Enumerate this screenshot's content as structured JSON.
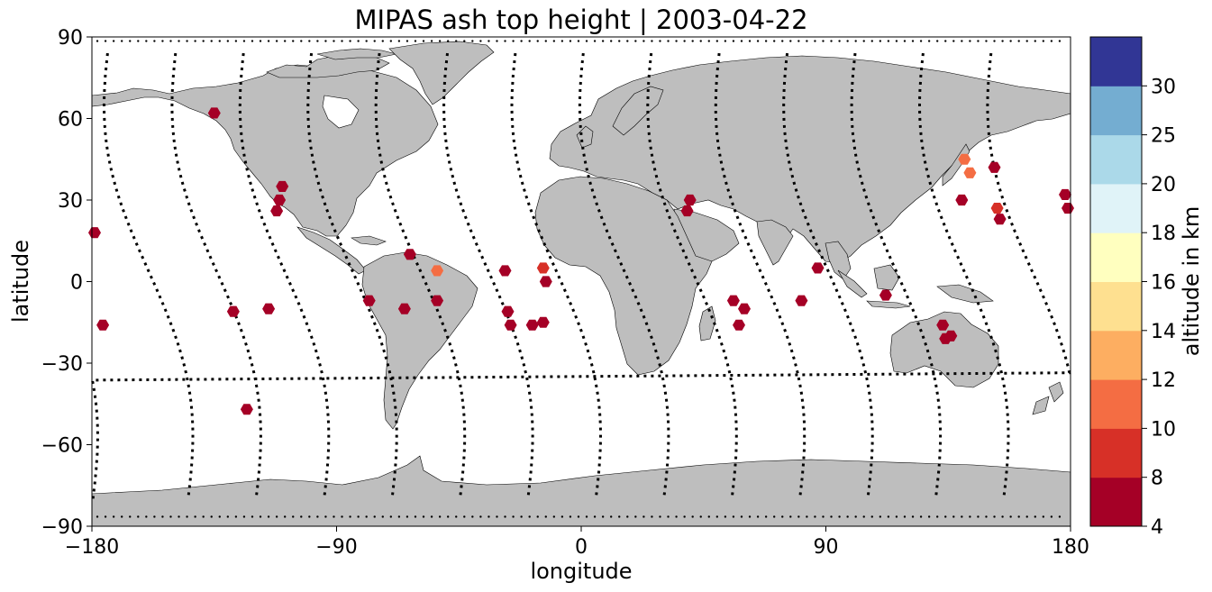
{
  "title": "MIPAS ash top height | 2003-04-22",
  "x_axis": {
    "label": "longitude",
    "range": [
      -180,
      180
    ],
    "ticks": [
      -180,
      -90,
      0,
      90,
      180
    ],
    "tick_labels": [
      "−180",
      "−90",
      "0",
      "90",
      "180"
    ]
  },
  "y_axis": {
    "label": "latitude",
    "range": [
      -90,
      90
    ],
    "ticks": [
      -90,
      -60,
      -30,
      0,
      30,
      60,
      90
    ],
    "tick_labels": [
      "−90",
      "−60",
      "−30",
      "0",
      "30",
      "60",
      "90"
    ]
  },
  "colorbar": {
    "label": "altitude in km",
    "bounds": [
      4,
      8,
      10,
      12,
      14,
      16,
      18,
      20,
      25,
      30
    ],
    "tick_labels": [
      "4",
      "8",
      "10",
      "12",
      "14",
      "16",
      "18",
      "20",
      "25",
      "30"
    ],
    "colors": [
      "#a50026",
      "#d73027",
      "#f46d43",
      "#fdae61",
      "#fee090",
      "#ffffbf",
      "#e0f3f8",
      "#abd9e9",
      "#74add1",
      "#313695"
    ]
  },
  "colors": {
    "land": "#bebebe",
    "coast": "#000000",
    "track": "#000000",
    "background": "#ffffff"
  },
  "chart_data": {
    "type": "scatter",
    "title": "MIPAS ash top height | 2003-04-22",
    "xlabel": "longitude",
    "ylabel": "latitude",
    "xlim": [
      -180,
      180
    ],
    "ylim": [
      -90,
      90
    ],
    "grid": false,
    "series": [
      {
        "name": "ash top height (km)",
        "points": [
          {
            "lon": -179,
            "lat": 18,
            "alt": 6
          },
          {
            "lon": -176,
            "lat": -16,
            "alt": 6
          },
          {
            "lon": -135,
            "lat": 62,
            "alt": 6
          },
          {
            "lon": -128,
            "lat": -11,
            "alt": 6
          },
          {
            "lon": -123,
            "lat": -47,
            "alt": 6
          },
          {
            "lon": -115,
            "lat": -10,
            "alt": 6
          },
          {
            "lon": -112,
            "lat": 26,
            "alt": 6
          },
          {
            "lon": -111,
            "lat": 30,
            "alt": 6
          },
          {
            "lon": -110,
            "lat": 35,
            "alt": 6
          },
          {
            "lon": -78,
            "lat": -7,
            "alt": 6
          },
          {
            "lon": -65,
            "lat": -10,
            "alt": 6
          },
          {
            "lon": -63,
            "lat": 10,
            "alt": 6
          },
          {
            "lon": -53,
            "lat": 4,
            "alt": 10
          },
          {
            "lon": -53,
            "lat": -7,
            "alt": 6
          },
          {
            "lon": -28,
            "lat": 4,
            "alt": 6
          },
          {
            "lon": -27,
            "lat": -11,
            "alt": 6
          },
          {
            "lon": -26,
            "lat": -16,
            "alt": 6
          },
          {
            "lon": -18,
            "lat": -16,
            "alt": 6
          },
          {
            "lon": -14,
            "lat": -15,
            "alt": 6
          },
          {
            "lon": -14,
            "lat": 5,
            "alt": 9
          },
          {
            "lon": -13,
            "lat": 0,
            "alt": 6
          },
          {
            "lon": 39,
            "lat": 26,
            "alt": 6
          },
          {
            "lon": 40,
            "lat": 30,
            "alt": 6
          },
          {
            "lon": 56,
            "lat": -7,
            "alt": 6
          },
          {
            "lon": 58,
            "lat": -16,
            "alt": 6
          },
          {
            "lon": 60,
            "lat": -10,
            "alt": 6
          },
          {
            "lon": 81,
            "lat": -7,
            "alt": 6
          },
          {
            "lon": 87,
            "lat": 5,
            "alt": 6
          },
          {
            "lon": 112,
            "lat": -5,
            "alt": 6
          },
          {
            "lon": 133,
            "lat": -16,
            "alt": 6
          },
          {
            "lon": 134,
            "lat": -21,
            "alt": 6
          },
          {
            "lon": 136,
            "lat": -20,
            "alt": 6
          },
          {
            "lon": 140,
            "lat": 30,
            "alt": 6
          },
          {
            "lon": 141,
            "lat": 45,
            "alt": 11
          },
          {
            "lon": 143,
            "lat": 40,
            "alt": 11
          },
          {
            "lon": 152,
            "lat": 42,
            "alt": 6
          },
          {
            "lon": 153,
            "lat": 27,
            "alt": 9
          },
          {
            "lon": 154,
            "lat": 23,
            "alt": 6
          },
          {
            "lon": 178,
            "lat": 32,
            "alt": 6
          },
          {
            "lon": 179,
            "lat": 27,
            "alt": 6
          }
        ]
      }
    ]
  }
}
